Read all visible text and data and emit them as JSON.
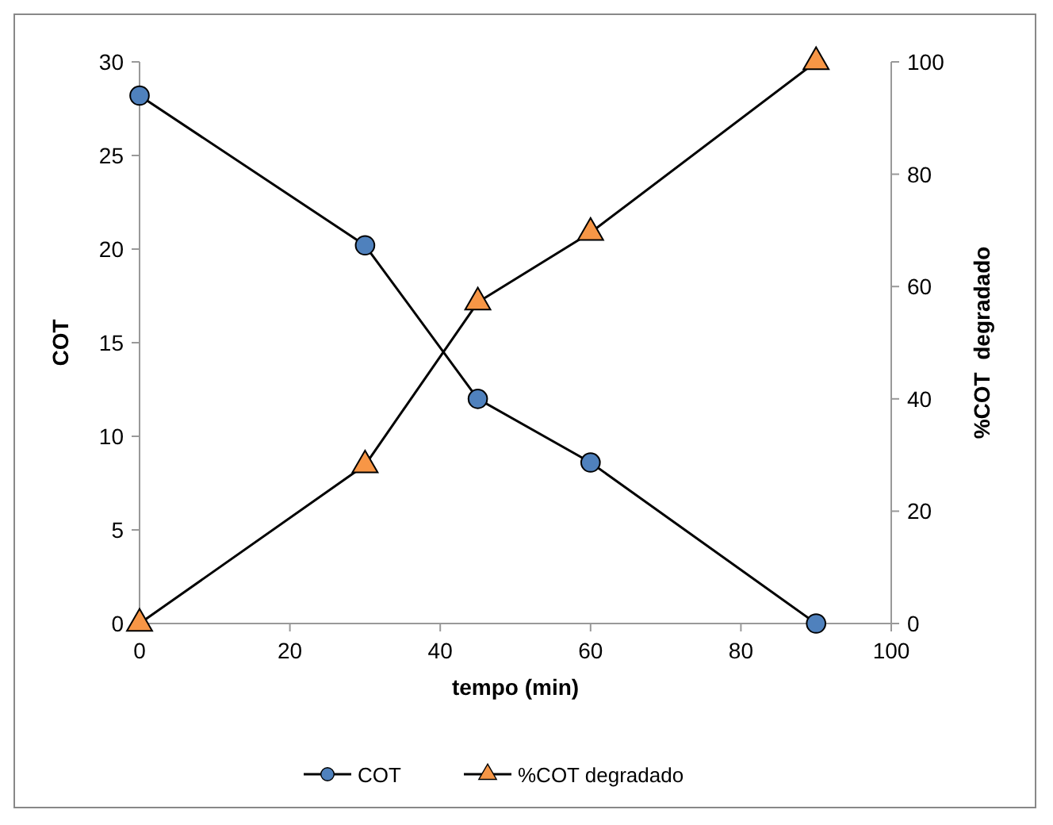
{
  "chart_data": {
    "type": "line",
    "xlabel": "tempo (min)",
    "ylabel": "COT",
    "y2label": "%COT  degradado",
    "series": [
      {
        "name": "COT",
        "color": "#4f81bd",
        "marker": "circle",
        "x": [
          0,
          30,
          45,
          60,
          90
        ],
        "values": [
          28.2,
          20.2,
          12.0,
          8.6,
          0
        ]
      },
      {
        "name": "%COT degradado",
        "color": "#f79646",
        "marker": "triangle",
        "axis": "y2",
        "x": [
          0,
          30,
          45,
          60,
          90
        ],
        "values": [
          0,
          28.2,
          57.2,
          69.6,
          100
        ]
      }
    ],
    "xlim": [
      0,
      100
    ],
    "xticks": [
      0,
      20,
      40,
      60,
      80,
      100
    ],
    "ylim": [
      0,
      30
    ],
    "yticks": [
      0,
      5,
      10,
      15,
      20,
      25,
      30
    ],
    "y2lim": [
      0,
      100
    ],
    "y2ticks": [
      0,
      20,
      40,
      60,
      80,
      100
    ],
    "grid": false,
    "legend": "bottom"
  }
}
